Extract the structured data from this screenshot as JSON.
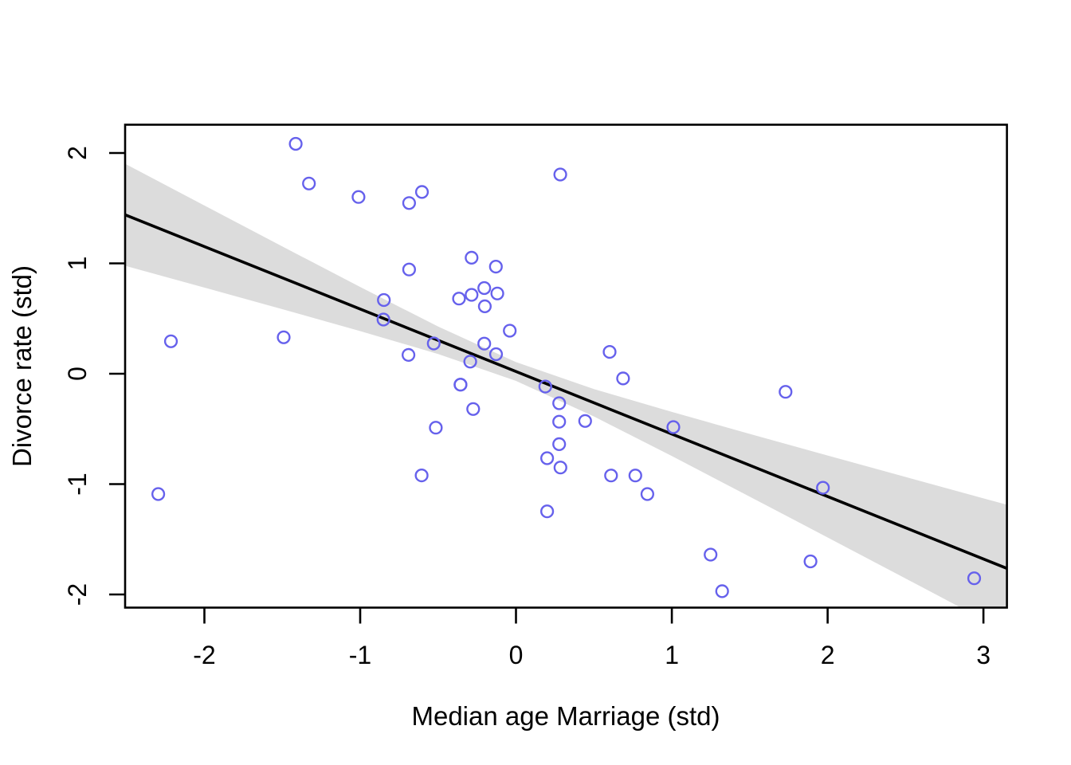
{
  "figure": {
    "background": "#ffffff",
    "plot_type_note": "scatter plot with linear regression line and shaded confidence band"
  },
  "chart_data": {
    "type": "scatter",
    "title": "",
    "xlabel": "Median age Marriage (std)",
    "ylabel": "Divorce rate (std)",
    "xlim": [
      -2.509,
      3.151
    ],
    "ylim": [
      -2.119,
      2.256
    ],
    "grid": "off",
    "legend": "none",
    "x_ticks": [
      -2,
      -1,
      0,
      1,
      2,
      3
    ],
    "x_tick_labels": [
      "-2",
      "-1",
      "0",
      "1",
      "2",
      "3"
    ],
    "y_ticks": [
      -2,
      -1,
      0,
      1,
      2
    ],
    "y_tick_labels": [
      "-2",
      "-1",
      "0",
      "1",
      "2"
    ],
    "points": [
      [
        -1.414,
        2.083
      ],
      [
        -1.329,
        1.723
      ],
      [
        -1.011,
        1.601
      ],
      [
        -0.604,
        1.647
      ],
      [
        -0.686,
        1.546
      ],
      [
        0.284,
        1.805
      ],
      [
        -0.285,
        1.051
      ],
      [
        -0.129,
        0.97
      ],
      [
        -0.686,
        0.944
      ],
      [
        -0.848,
        0.668
      ],
      [
        -0.851,
        0.491
      ],
      [
        -0.204,
        0.776
      ],
      [
        -0.285,
        0.715
      ],
      [
        -0.366,
        0.681
      ],
      [
        -0.12,
        0.727
      ],
      [
        -0.2,
        0.611
      ],
      [
        -0.04,
        0.39
      ],
      [
        -0.204,
        0.273
      ],
      [
        -0.128,
        0.177
      ],
      [
        -0.294,
        0.11
      ],
      [
        -0.528,
        0.274
      ],
      [
        -0.69,
        0.17
      ],
      [
        -1.491,
        0.33
      ],
      [
        -2.215,
        0.294
      ],
      [
        0.601,
        0.198
      ],
      [
        0.687,
        -0.043
      ],
      [
        -0.356,
        -0.099
      ],
      [
        -0.356,
        -0.099
      ],
      [
        -0.275,
        -0.32
      ],
      [
        -0.515,
        -0.489
      ],
      [
        -0.606,
        -0.921
      ],
      [
        0.188,
        -0.116
      ],
      [
        0.277,
        -0.267
      ],
      [
        0.277,
        -0.435
      ],
      [
        0.444,
        -0.428
      ],
      [
        1.01,
        -0.484
      ],
      [
        0.277,
        -0.638
      ],
      [
        0.2,
        -0.765
      ],
      [
        0.285,
        -0.85
      ],
      [
        0.61,
        -0.922
      ],
      [
        0.766,
        -0.922
      ],
      [
        0.843,
        -1.09
      ],
      [
        0.2,
        -1.247
      ],
      [
        1.249,
        -1.639
      ],
      [
        1.323,
        -1.97
      ],
      [
        1.73,
        -0.164
      ],
      [
        1.97,
        -1.033
      ],
      [
        1.89,
        -1.7
      ],
      [
        2.941,
        -1.853
      ],
      [
        -2.296,
        -1.09
      ]
    ],
    "regression_line": {
      "intercept": 0.02,
      "slope": -0.566,
      "x_start": -2.509,
      "x_end": 3.151
    },
    "confidence_band": {
      "x": [
        -2.509,
        -2.0,
        -1.5,
        -1.0,
        -0.5,
        0.0,
        0.5,
        1.0,
        1.5,
        2.0,
        2.5,
        3.0,
        3.151
      ],
      "hi": [
        1.902,
        1.524,
        1.153,
        0.786,
        0.427,
        0.105,
        -0.139,
        -0.346,
        -0.545,
        -0.741,
        -0.935,
        -1.129,
        -1.187
      ],
      "lo": [
        0.978,
        0.78,
        0.585,
        0.386,
        0.179,
        -0.065,
        -0.387,
        -0.746,
        -1.113,
        -1.484,
        -1.855,
        -2.227,
        -2.339
      ]
    },
    "colors": {
      "point_stroke": "#6661ec",
      "regression_line": "#000000",
      "confidence_band": "#dcdcdc",
      "frame": "#000000",
      "text": "#000000"
    }
  }
}
